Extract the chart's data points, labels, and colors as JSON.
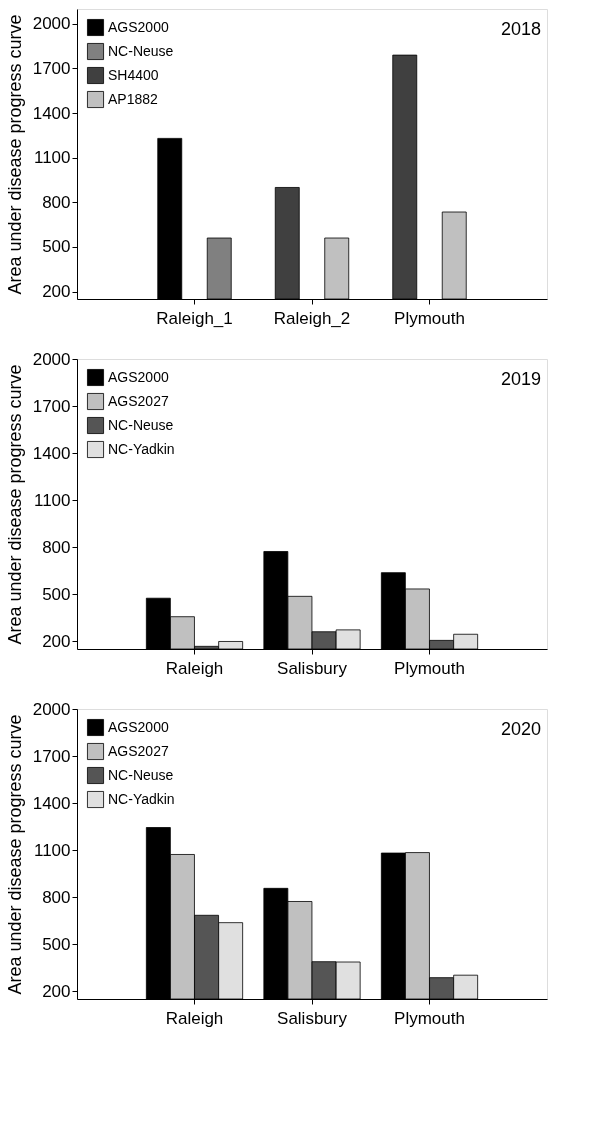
{
  "chart_data": [
    {
      "type": "bar",
      "title": "2018",
      "ylabel": "Area under disease progress curve",
      "categories": [
        "Raleigh_1",
        "Raleigh_2",
        "Plymouth"
      ],
      "legend": "top left",
      "ylim": [
        150,
        2100
      ],
      "yticks": [
        200,
        500,
        800,
        1100,
        1400,
        1700,
        2000
      ],
      "grid": false,
      "series": [
        {
          "name": "AGS2000",
          "color": "#000000",
          "values": [
            1230,
            null,
            null
          ]
        },
        {
          "name": "NC-Neuse",
          "color": "#808080",
          "values": [
            560,
            null,
            null
          ]
        },
        {
          "name": "SH4400",
          "color": "#404040",
          "values": [
            null,
            900,
            1790
          ]
        },
        {
          "name": "AP1882",
          "color": "#c0c0c0",
          "values": [
            null,
            560,
            735
          ]
        }
      ]
    },
    {
      "type": "bar",
      "title": "2019",
      "ylabel": "Area under disease progress curve",
      "categories": [
        "Raleigh",
        "Salisbury",
        "Plymouth"
      ],
      "legend": "top left",
      "ylim": [
        150,
        2000
      ],
      "yticks": [
        200,
        500,
        800,
        1100,
        1400,
        1700,
        2000
      ],
      "grid": false,
      "series": [
        {
          "name": "AGS2000",
          "color": "#000000",
          "values": [
            474,
            772,
            637
          ]
        },
        {
          "name": "AGS2027",
          "color": "#c0c0c0",
          "values": [
            356,
            486,
            533
          ]
        },
        {
          "name": "NC-Neuse",
          "color": "#555555",
          "values": [
            167,
            260,
            205
          ]
        },
        {
          "name": "NC-Yadkin",
          "color": "#e0e0e0",
          "values": [
            198,
            272,
            244
          ]
        }
      ]
    },
    {
      "type": "bar",
      "title": "2020",
      "ylabel": "Area under disease progress curve",
      "categories": [
        "Raleigh",
        "Salisbury",
        "Plymouth"
      ],
      "legend": "top left",
      "ylim": [
        150,
        2000
      ],
      "yticks": [
        200,
        500,
        800,
        1100,
        1400,
        1700,
        2000
      ],
      "grid": false,
      "series": [
        {
          "name": "AGS2000",
          "color": "#000000",
          "values": [
            1244,
            856,
            1081
          ]
        },
        {
          "name": "AGS2027",
          "color": "#c0c0c0",
          "values": [
            1072,
            772,
            1084
          ]
        },
        {
          "name": "NC-Neuse",
          "color": "#555555",
          "values": [
            684,
            388,
            286
          ]
        },
        {
          "name": "NC-Yadkin",
          "color": "#e0e0e0",
          "values": [
            637,
            386,
            302
          ]
        }
      ]
    }
  ]
}
